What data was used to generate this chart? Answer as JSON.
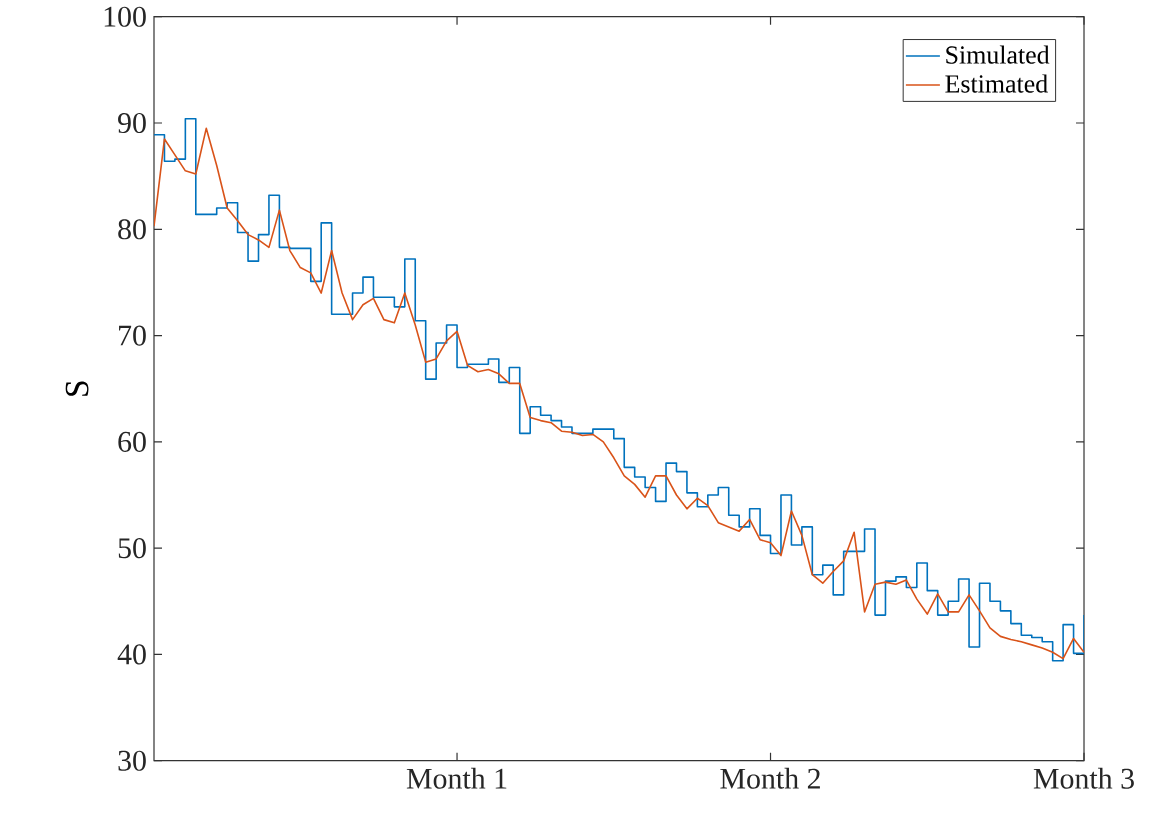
{
  "chart_data": {
    "type": "line",
    "ylabel": "S",
    "categories": [
      null,
      null,
      null,
      null,
      null,
      null,
      null,
      null,
      null,
      null,
      null,
      null,
      null,
      null,
      null,
      null,
      null,
      null,
      null,
      null,
      null,
      null,
      null,
      null,
      null,
      null,
      null,
      null,
      null,
      "Month 1",
      null,
      null,
      null,
      null,
      null,
      null,
      null,
      null,
      null,
      null,
      null,
      null,
      null,
      null,
      null,
      null,
      null,
      null,
      null,
      null,
      null,
      null,
      null,
      null,
      null,
      null,
      null,
      null,
      null,
      "Month 2",
      null,
      null,
      null,
      null,
      null,
      null,
      null,
      null,
      null,
      null,
      null,
      null,
      null,
      null,
      null,
      null,
      null,
      null,
      null,
      null,
      null,
      null,
      null,
      null,
      null,
      null,
      null,
      null,
      null,
      "Month 3"
    ],
    "ylim": [
      30,
      100
    ],
    "yticks": [
      30,
      40,
      50,
      60,
      70,
      80,
      90,
      100
    ],
    "grid": false,
    "legend": "top right",
    "marker": "none",
    "line_style": "solid",
    "series": [
      {
        "name": "Simulated",
        "type": "step",
        "color": "#0072bd",
        "values": [
          88.9,
          86.4,
          86.6,
          90.4,
          81.4,
          81.4,
          82.0,
          82.5,
          79.7,
          77.0,
          79.5,
          83.2,
          78.3,
          78.2,
          78.2,
          75.1,
          80.6,
          72.0,
          72.0,
          74.0,
          75.5,
          73.6,
          73.6,
          72.7,
          77.2,
          71.4,
          65.9,
          69.3,
          71.0,
          67.0,
          67.3,
          67.3,
          67.8,
          65.6,
          67.0,
          60.8,
          63.3,
          62.5,
          62.0,
          61.4,
          60.8,
          60.8,
          61.2,
          61.2,
          60.3,
          57.6,
          56.7,
          55.7,
          54.4,
          58.0,
          57.2,
          55.2,
          53.9,
          55.0,
          55.7,
          53.1,
          52.0,
          53.7,
          51.2,
          49.5,
          55.0,
          50.3,
          52.0,
          47.5,
          48.4,
          45.6,
          49.7,
          49.7,
          51.8,
          43.7,
          46.9,
          47.3,
          46.3,
          48.6,
          46.0,
          43.7,
          45.0,
          47.1,
          40.7,
          46.7,
          45.0,
          44.1,
          42.9,
          41.8,
          41.6,
          41.2,
          39.4,
          42.8,
          40.1,
          43.7
        ]
      },
      {
        "name": "Estimated",
        "color": "#d95319",
        "values": [
          80.3,
          88.5,
          87.0,
          85.5,
          85.2,
          89.5,
          86.0,
          82.0,
          80.8,
          79.5,
          79.0,
          78.3,
          81.8,
          78.0,
          76.4,
          75.9,
          74.0,
          78.0,
          74.0,
          71.5,
          72.9,
          73.5,
          71.5,
          71.2,
          74.0,
          71.0,
          67.5,
          67.8,
          69.5,
          70.4,
          67.2,
          66.6,
          66.8,
          66.4,
          65.5,
          65.5,
          62.3,
          62.0,
          61.8,
          61.0,
          60.9,
          60.6,
          60.7,
          60.0,
          58.5,
          56.8,
          56.0,
          54.8,
          56.8,
          56.8,
          55.0,
          53.7,
          54.7,
          54.0,
          52.4,
          52.0,
          51.6,
          52.7,
          50.8,
          50.5,
          49.3,
          53.5,
          51.2,
          47.5,
          46.7,
          47.8,
          48.8,
          51.5,
          44.0,
          46.6,
          46.8,
          46.6,
          47.0,
          45.2,
          43.8,
          45.7,
          44.0,
          44.0,
          45.6,
          44.1,
          42.5,
          41.7,
          41.4,
          41.2,
          40.9,
          40.6,
          40.2,
          39.6,
          41.5,
          40.2
        ]
      }
    ]
  }
}
